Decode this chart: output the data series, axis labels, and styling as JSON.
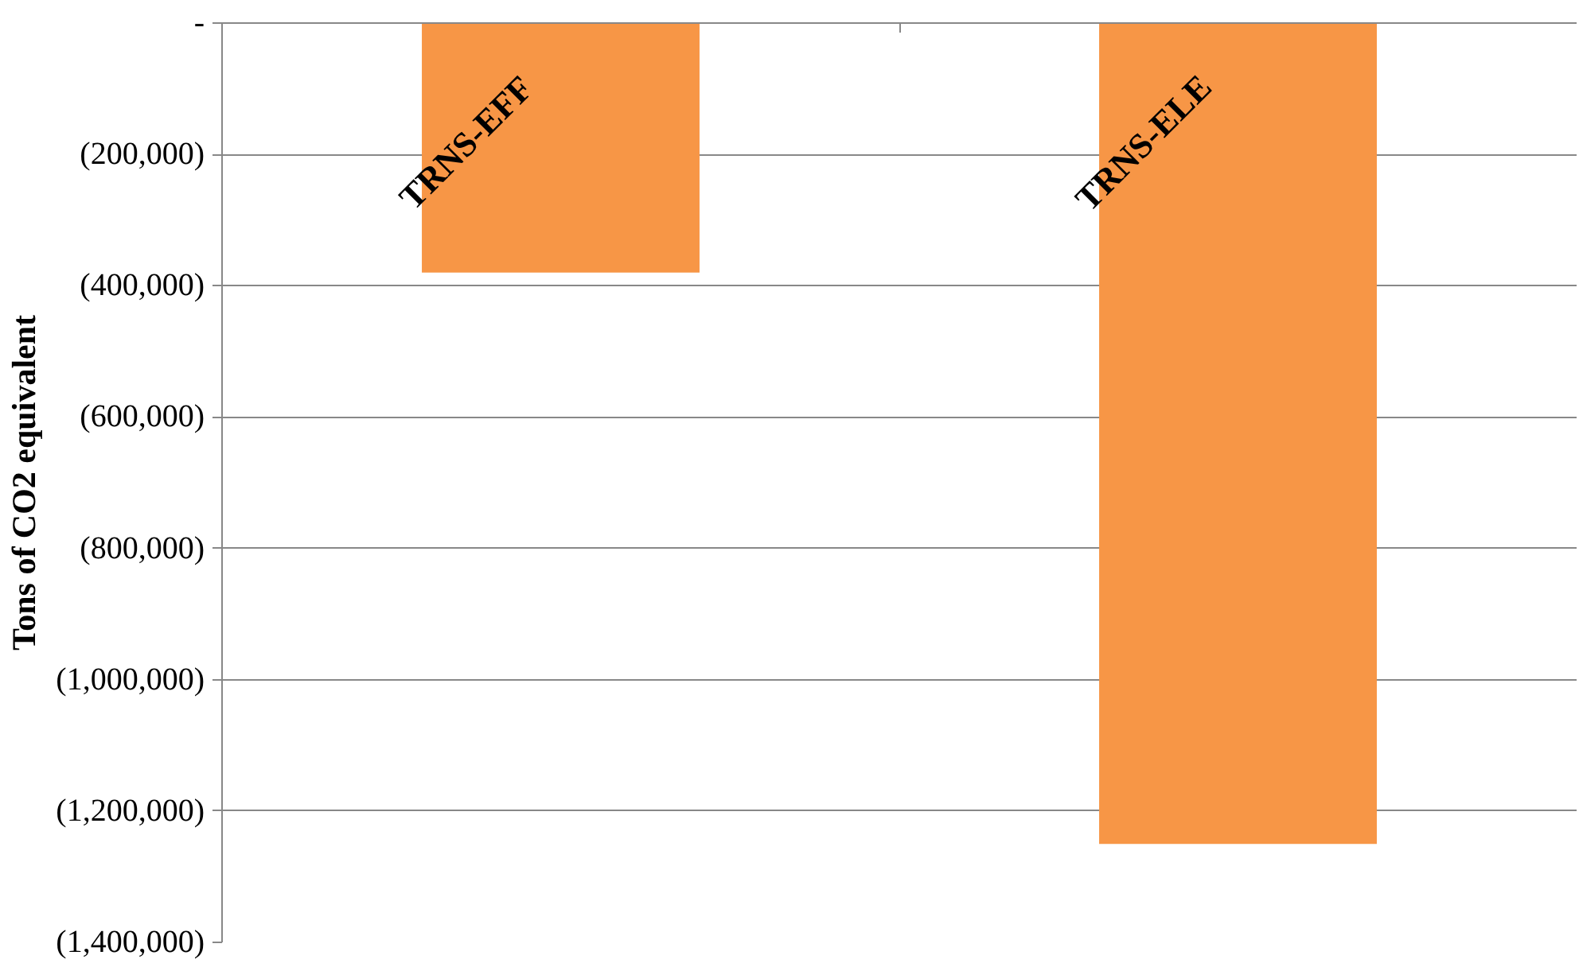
{
  "chart_data": {
    "type": "bar",
    "ylabel": "Tons of CO2 equivalent",
    "categories": [
      "TRNS-EFF",
      "TRNS-ELE"
    ],
    "series": [
      {
        "color": "#f79646",
        "values": [
          -380000,
          -1250000
        ]
      }
    ],
    "ylim": [
      -1400000,
      0
    ],
    "yticks": [
      {
        "value": 0,
        "label": "-"
      },
      {
        "value": -200000,
        "label": "(200,000)"
      },
      {
        "value": -400000,
        "label": "(400,000)"
      },
      {
        "value": -600000,
        "label": "(600,000)"
      },
      {
        "value": -800000,
        "label": "(800,000)"
      },
      {
        "value": -1000000,
        "label": "(1,000,000)"
      },
      {
        "value": -1200000,
        "label": "(1,200,000)"
      },
      {
        "value": -1400000,
        "label": "(1,400,000)"
      }
    ],
    "grid": "y"
  }
}
